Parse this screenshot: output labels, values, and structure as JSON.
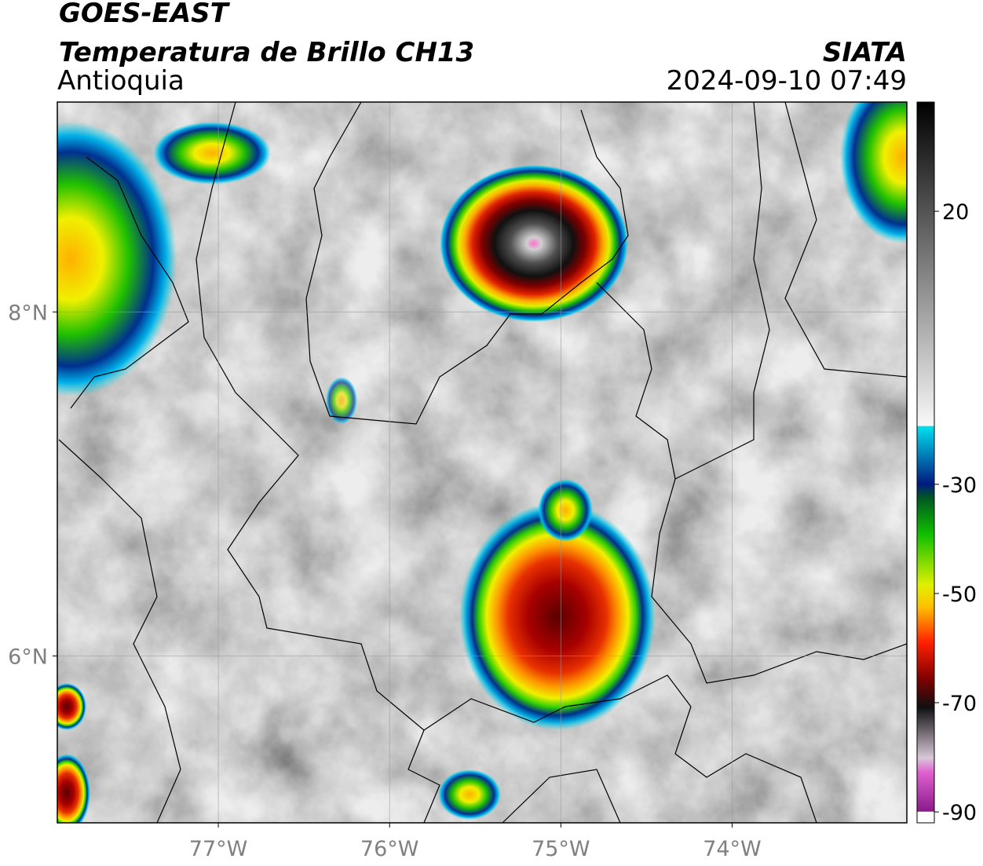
{
  "header": {
    "title": "GOES-EAST",
    "subtitle": "Temperatura de Brillo CH13",
    "region": "Antioquia",
    "source": "SIATA",
    "datetime": "2024-09-10 07:49"
  },
  "map": {
    "xlim": [
      -77.94,
      -72.98
    ],
    "ylim": [
      5.03,
      9.22
    ],
    "xticks": [
      {
        "value": -77,
        "label": "77°W"
      },
      {
        "value": -76,
        "label": "76°W"
      },
      {
        "value": -75,
        "label": "75°W"
      },
      {
        "value": -74,
        "label": "74°W"
      }
    ],
    "yticks": [
      {
        "value": 6,
        "label": "6°N"
      },
      {
        "value": 8,
        "label": "8°N"
      }
    ],
    "grid": true,
    "colorbar": {
      "lim": [
        -92,
        40
      ],
      "ticks": [
        20,
        -30,
        -50,
        -70,
        -90
      ]
    }
  }
}
